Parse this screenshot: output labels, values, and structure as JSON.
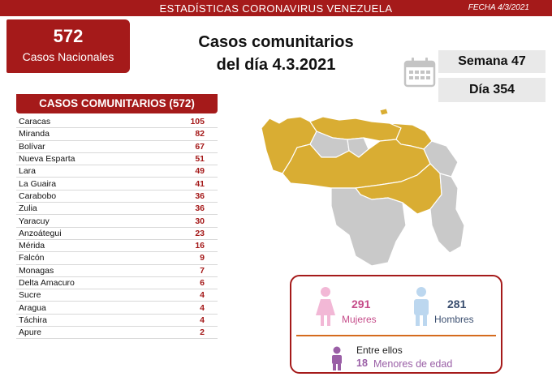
{
  "header": {
    "title": "ESTADÍSTICAS CORONAVIRUS VENEZUELA",
    "date": "FECHA 4/3/2021"
  },
  "national": {
    "count": "572",
    "label": "Casos Nacionales"
  },
  "headline": {
    "line1": "Casos comunitarios",
    "line2": "del día 4.3.2021"
  },
  "calendar": {
    "icon": "calendar-icon",
    "week": "Semana 47",
    "day": "Día 354"
  },
  "table": {
    "header": "CASOS COMUNITARIOS (572)",
    "rows": [
      {
        "name": "Caracas",
        "value": "105"
      },
      {
        "name": "Miranda",
        "value": "82"
      },
      {
        "name": "Bolívar",
        "value": "67"
      },
      {
        "name": "Nueva Esparta",
        "value": "51"
      },
      {
        "name": "Lara",
        "value": "49"
      },
      {
        "name": "La Guaira",
        "value": "41"
      },
      {
        "name": "Carabobo",
        "value": "36"
      },
      {
        "name": "Zulia",
        "value": "36"
      },
      {
        "name": "Yaracuy",
        "value": "30"
      },
      {
        "name": "Anzoátegui",
        "value": "23"
      },
      {
        "name": "Mérida",
        "value": "16"
      },
      {
        "name": "Falcón",
        "value": "9"
      },
      {
        "name": "Monagas",
        "value": "7"
      },
      {
        "name": "Delta Amacuro",
        "value": "6"
      },
      {
        "name": "Sucre",
        "value": "4"
      },
      {
        "name": "Aragua",
        "value": "4"
      },
      {
        "name": "Táchira",
        "value": "4"
      },
      {
        "name": "Apure",
        "value": "2"
      }
    ]
  },
  "map": {
    "icon": "venezuela-map",
    "colors": {
      "affected": "#d9ad33",
      "unaffected": "#c9c9c9",
      "border": "#ffffff"
    }
  },
  "stats": {
    "women_count": "291",
    "women_label": "Mujeres",
    "men_count": "281",
    "men_label": "Hombres",
    "among_label": "Entre ellos",
    "minors_count": "18",
    "minors_label": "Menores de edad"
  },
  "colors": {
    "brand_red": "#a51a1a",
    "women": "#c64d8a",
    "men": "#3b4f70",
    "minors": "#9a5fa6",
    "divider": "#d56b1e"
  }
}
